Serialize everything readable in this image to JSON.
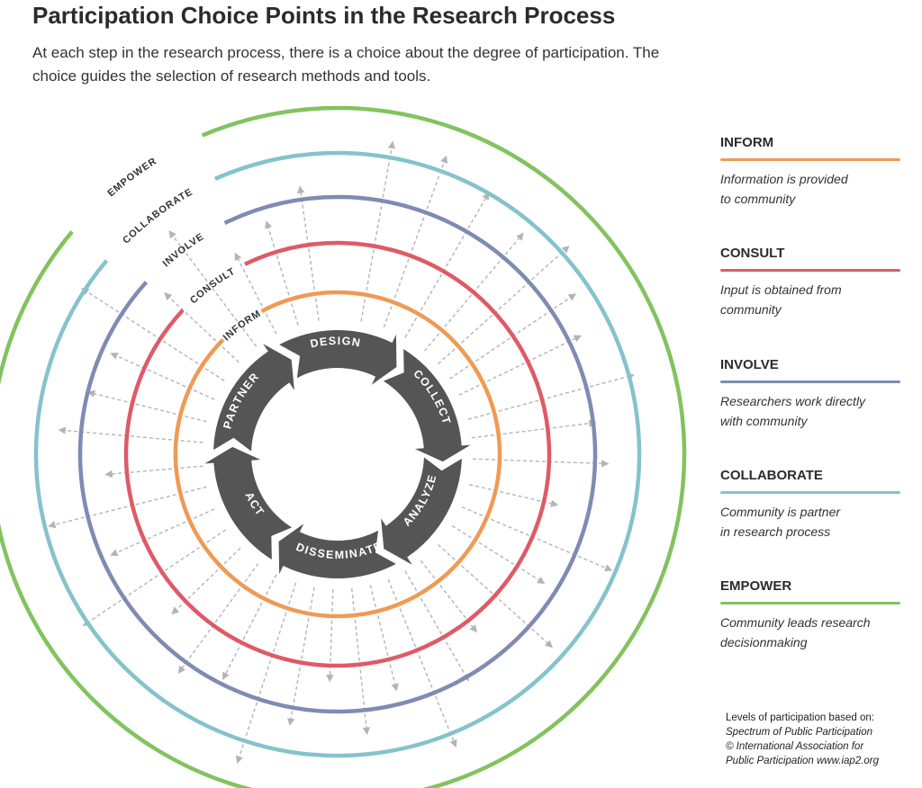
{
  "title": "Participation Choice Points in the Research Process",
  "subtitle": "At each step in the research process, there is a choice about the degree of participation. The choice guides the selection of research methods and tools.",
  "rings": [
    {
      "label": "INFORM",
      "color": "#ef9a55"
    },
    {
      "label": "CONSULT",
      "color": "#df5a67"
    },
    {
      "label": "INVOLVE",
      "color": "#7f8bb2"
    },
    {
      "label": "COLLABORATE",
      "color": "#85c3cb"
    },
    {
      "label": "EMPOWER",
      "color": "#82c35f"
    }
  ],
  "cycle_steps": [
    "DESIGN",
    "COLLECT",
    "ANALYZE",
    "DISSEMINATE",
    "ACT",
    "PARTNER"
  ],
  "cycle_color": "#555555",
  "arrow_color": "#b4b4b4",
  "legend": [
    {
      "heading": "INFORM",
      "description_lines": [
        "Information is provided",
        "to community"
      ],
      "color": "#ef9a55"
    },
    {
      "heading": "CONSULT",
      "description_lines": [
        "Input is obtained from",
        "community"
      ],
      "color": "#df5a67"
    },
    {
      "heading": "INVOLVE",
      "description_lines": [
        "Researchers work directly",
        "with community"
      ],
      "color": "#7f8bb2"
    },
    {
      "heading": "COLLABORATE",
      "description_lines": [
        "Community is partner",
        "in research process"
      ],
      "color": "#85c3cb"
    },
    {
      "heading": "EMPOWER",
      "description_lines": [
        "Community leads research",
        "decisionmaking"
      ],
      "color": "#82c35f"
    }
  ],
  "credit": {
    "line1": "Levels of participation based on:",
    "line2": "Spectrum of Public Participation",
    "line3": "© International Association for",
    "line4": "Public Participation www.iap2.org"
  }
}
